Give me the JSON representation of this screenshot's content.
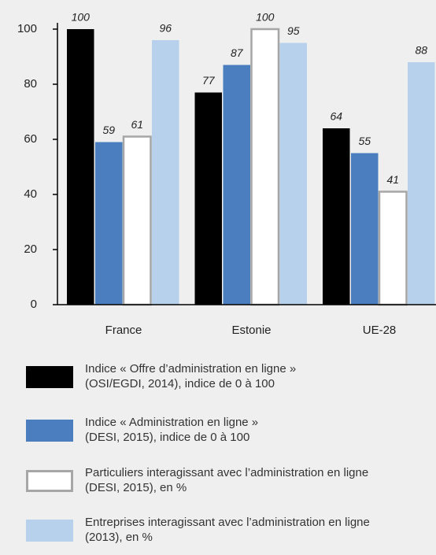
{
  "chart_data": {
    "type": "bar",
    "categories": [
      "France",
      "Estonie",
      "UE-28"
    ],
    "series": [
      {
        "name": "Indice « Offre d’administration en ligne »\n(OSI/EGDI, 2014), indice de 0 à 100",
        "color": "#000000",
        "values": [
          100,
          77,
          64
        ]
      },
      {
        "name": "Indice « Administration en ligne »\n(DESI, 2015), indice de 0 à 100",
        "color": "#4a7ebf",
        "values": [
          59,
          87,
          55
        ]
      },
      {
        "name": "Particuliers interagissant avec l’administration en ligne\n(DESI, 2015), en %",
        "color": "#ffffff",
        "values": [
          61,
          100,
          41
        ]
      },
      {
        "name": "Entreprises interagissant avec l’administration en ligne\n(2013), en %",
        "color": "#b7d0ec",
        "values": [
          96,
          95,
          88
        ]
      }
    ],
    "ylim": [
      0,
      100
    ],
    "yticks": [
      0,
      20,
      40,
      60,
      80,
      100
    ],
    "grid": false,
    "legend": "bottom"
  }
}
